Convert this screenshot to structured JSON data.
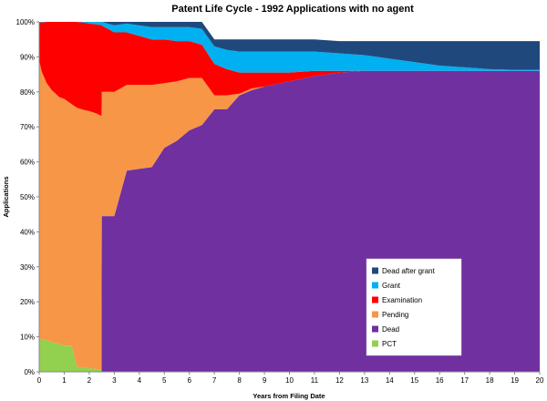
{
  "chart_data": {
    "type": "area",
    "stacked": true,
    "title": "Patent Life Cycle - 1992 Applications with no agent",
    "xlabel": "Years from Filing Date",
    "ylabel": "Applications",
    "xlim": [
      0,
      20
    ],
    "ylim": [
      0,
      100
    ],
    "x_ticks": [
      "0",
      "1",
      "2",
      "3",
      "4",
      "5",
      "6",
      "7",
      "8",
      "9",
      "10",
      "11",
      "12",
      "13",
      "14",
      "15",
      "16",
      "17",
      "18",
      "19",
      "20"
    ],
    "y_ticks": [
      "0%",
      "10%",
      "20%",
      "30%",
      "40%",
      "50%",
      "60%",
      "70%",
      "80%",
      "90%",
      "100%"
    ],
    "grid": false,
    "legend_position": "bottom-right",
    "x": [
      0,
      0.1,
      0.3,
      0.5,
      0.8,
      1.0,
      1.3,
      1.5,
      1.8,
      2.0,
      2.3,
      2.49,
      2.5,
      3.0,
      3.5,
      4.0,
      4.5,
      5.0,
      5.5,
      6.0,
      6.5,
      7.0,
      7.5,
      8.0,
      8.5,
      9.0,
      10.0,
      11.0,
      12.0,
      13.0,
      14.0,
      15.0,
      16.0,
      17.0,
      18.0,
      19.0,
      20.0
    ],
    "series": [
      {
        "name": "PCT",
        "color": "#92d050",
        "values": [
          9.5,
          9.3,
          9.0,
          8.5,
          8.0,
          7.5,
          7.5,
          1.5,
          1.3,
          1.0,
          0.8,
          0.6,
          0,
          0,
          0,
          0,
          0,
          0,
          0,
          0,
          0,
          0,
          0,
          0,
          0,
          0,
          0,
          0,
          0,
          0,
          0,
          0,
          0,
          0,
          0,
          0,
          0
        ]
      },
      {
        "name": "Dead",
        "color": "#7030a0",
        "values": [
          0,
          0,
          0,
          0,
          0,
          0,
          0,
          0,
          0,
          0,
          0,
          0,
          44.5,
          44.5,
          57.5,
          58,
          58.5,
          64,
          66,
          69,
          70.5,
          75,
          75,
          79,
          80.5,
          81.5,
          83,
          84.5,
          85.5,
          86,
          86,
          86,
          86,
          86,
          86,
          86,
          86
        ]
      },
      {
        "name": "Pending",
        "color": "#f79646",
        "values": [
          79.5,
          76.5,
          73.5,
          72,
          70.5,
          70.5,
          69,
          74,
          73.5,
          73.5,
          73,
          72.5,
          35.5,
          35.5,
          24.5,
          24,
          23.5,
          18.5,
          17,
          15,
          13.5,
          4,
          4,
          0.5,
          0.5,
          0,
          0,
          0,
          0,
          0,
          0,
          0,
          0,
          0,
          0,
          0,
          0
        ]
      },
      {
        "name": "Examination",
        "color": "#ff0000",
        "values": [
          11,
          14,
          17.5,
          19.5,
          21.5,
          22,
          23.5,
          24.5,
          25,
          25,
          25.5,
          26,
          19,
          17,
          15,
          14,
          13,
          12.5,
          11.5,
          10.5,
          9.5,
          9,
          7.5,
          6,
          4.5,
          4,
          2.5,
          1.5,
          0.5,
          0,
          0,
          0,
          0,
          0,
          0,
          0,
          0
        ]
      },
      {
        "name": "Grant",
        "color": "#00b0f0",
        "values": [
          0,
          0.2,
          0,
          0,
          0,
          0,
          0,
          0,
          0.2,
          0.5,
          0.7,
          0.9,
          1.0,
          2.0,
          2.5,
          3.0,
          3.5,
          3.5,
          4.0,
          4.0,
          4.5,
          5.0,
          5.5,
          6.0,
          6.0,
          6.0,
          6.0,
          5.5,
          5.0,
          4.5,
          3.5,
          2.5,
          1.5,
          1.0,
          0.5,
          0.3,
          0.3
        ]
      },
      {
        "name": "Dead after grant",
        "color": "#1f497d",
        "values": [
          0,
          0,
          0,
          0,
          0,
          0,
          0,
          0,
          0,
          0,
          0,
          0,
          0,
          1.0,
          0.5,
          1.0,
          1.5,
          1.5,
          1.5,
          1.5,
          2.0,
          2.0,
          3.0,
          3.5,
          3.5,
          3.5,
          3.5,
          3.5,
          3.5,
          4.0,
          5.0,
          6.0,
          7.0,
          7.5,
          8.0,
          8.2,
          8.2
        ]
      }
    ],
    "legend_order": [
      "Dead after grant",
      "Grant",
      "Examination",
      "Pending",
      "Dead",
      "PCT"
    ]
  }
}
